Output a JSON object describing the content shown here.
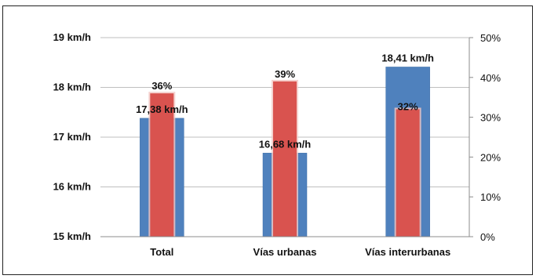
{
  "chart_data": {
    "type": "bar",
    "title": "",
    "categories": [
      "Total",
      "Vías urbanas",
      "Vías interurbanas"
    ],
    "series": [
      {
        "axis": "left",
        "values": [
          17.38,
          16.68,
          18.41
        ],
        "labels": [
          "17,38 km/h",
          "16,68 km/h",
          "18,41 km/h"
        ],
        "color": "#4f81bd"
      },
      {
        "axis": "right",
        "values": [
          36,
          39,
          32
        ],
        "labels": [
          "36%",
          "39%",
          "32%"
        ],
        "color": "#d9534f"
      }
    ],
    "left_axis": {
      "ylim": [
        15,
        19
      ],
      "ticks": [
        15,
        16,
        17,
        18,
        19
      ],
      "tick_labels": [
        "15 km/h",
        "16 km/h",
        "17 km/h",
        "18 km/h",
        "19 km/h"
      ]
    },
    "right_axis": {
      "ylim": [
        0,
        50
      ],
      "ticks": [
        0,
        10,
        20,
        30,
        40,
        50
      ],
      "tick_labels": [
        "0%",
        "10%",
        "20%",
        "30%",
        "40%",
        "50%"
      ]
    },
    "grid": true,
    "legend": "none"
  }
}
